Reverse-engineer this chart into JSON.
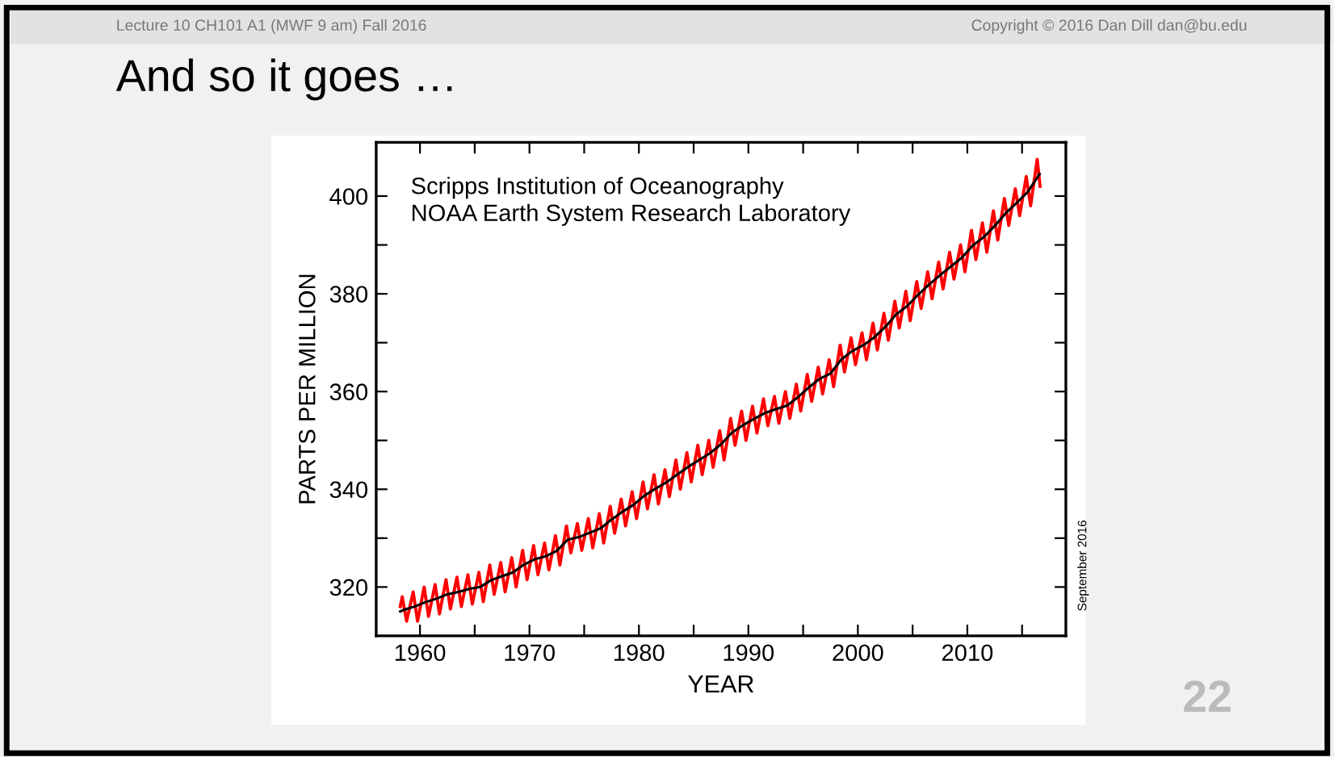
{
  "chart_data": {
    "type": "line",
    "title": "And so it goes …",
    "xlabel": "YEAR",
    "ylabel": "PARTS PER MILLION",
    "annotations": [
      "Lecture 10 CH101 A1 (MWF 9 am) Fall 2016",
      "Copyright © 2016 Dan Dill dan@bu.edu",
      "Scripps Institution of Oceanography\nNOAA Earth System Research Laboratory",
      "September 2016",
      "22"
    ],
    "xlim": [
      1956,
      2019
    ],
    "ylim": [
      310,
      411
    ],
    "xticks": [
      1960,
      {
        "value": 1965,
        "label": null
      },
      1970,
      {
        "value": 1975,
        "label": null
      },
      1980,
      {
        "value": 1985,
        "label": null
      },
      1990,
      {
        "value": 1995,
        "label": null
      },
      2000,
      {
        "value": 2005,
        "label": null
      },
      2010,
      {
        "value": 2015,
        "label": null
      }
    ],
    "yticks": [
      320,
      {
        "value": 330,
        "label": null
      },
      340,
      {
        "value": 350,
        "label": null
      },
      360,
      {
        "value": 370,
        "label": null
      },
      380,
      {
        "value": 390,
        "label": null
      },
      400
    ],
    "grid": false,
    "legend": false,
    "marker": "none",
    "line_style": "solid",
    "series": [
      {
        "color": "#ff0000",
        "x": [
          1958.2,
          1958.38,
          1958.78,
          1959.38,
          1959.78,
          1960.38,
          1960.78,
          1961.38,
          1961.78,
          1962.38,
          1962.78,
          1963.38,
          1963.78,
          1964.38,
          1964.78,
          1965.38,
          1965.78,
          1966.38,
          1966.78,
          1967.38,
          1967.78,
          1968.38,
          1968.78,
          1969.38,
          1969.78,
          1970.38,
          1970.78,
          1971.38,
          1971.78,
          1972.38,
          1972.78,
          1973.38,
          1973.78,
          1974.38,
          1974.78,
          1975.38,
          1975.78,
          1976.38,
          1976.78,
          1977.38,
          1977.78,
          1978.38,
          1978.78,
          1979.38,
          1979.78,
          1980.38,
          1980.78,
          1981.38,
          1981.78,
          1982.38,
          1982.78,
          1983.38,
          1983.78,
          1984.38,
          1984.78,
          1985.38,
          1985.78,
          1986.38,
          1986.78,
          1987.38,
          1987.78,
          1988.38,
          1988.78,
          1989.38,
          1989.78,
          1990.38,
          1990.78,
          1991.38,
          1991.78,
          1992.38,
          1992.78,
          1993.38,
          1993.78,
          1994.38,
          1994.78,
          1995.38,
          1995.78,
          1996.38,
          1996.78,
          1997.38,
          1997.78,
          1998.38,
          1998.78,
          1999.38,
          1999.78,
          2000.38,
          2000.78,
          2001.38,
          2001.78,
          2002.38,
          2002.78,
          2003.38,
          2003.78,
          2004.38,
          2004.78,
          2005.38,
          2005.78,
          2006.38,
          2006.78,
          2007.38,
          2007.78,
          2008.38,
          2008.78,
          2009.38,
          2009.78,
          2010.38,
          2010.78,
          2011.38,
          2011.78,
          2012.38,
          2012.78,
          2013.38,
          2013.78,
          2014.38,
          2014.78,
          2015.38,
          2015.78,
          2016.38,
          2016.65
        ],
        "values": [
          316,
          318,
          313,
          319,
          313,
          320,
          314,
          320.5,
          314.5,
          321.5,
          315.5,
          322,
          316,
          322.5,
          316.5,
          323,
          317,
          324.5,
          318.5,
          325,
          319,
          326,
          320,
          327.5,
          321.5,
          328.5,
          322.5,
          329,
          323.5,
          330.5,
          324.5,
          332.5,
          327,
          333,
          327.5,
          334,
          328,
          335,
          329,
          336.5,
          331,
          338,
          332.5,
          339.5,
          334,
          341.5,
          336,
          343,
          337,
          344,
          338.5,
          346,
          340,
          347.5,
          341.5,
          349,
          343,
          350,
          344.5,
          352,
          346,
          354.5,
          349,
          356,
          350,
          357,
          351.5,
          358.5,
          353,
          359,
          353.5,
          360,
          354.5,
          361.5,
          356,
          363.5,
          358,
          365,
          359.5,
          366.5,
          361,
          369.5,
          364,
          371,
          365.5,
          372,
          366.5,
          374,
          368.5,
          376,
          370.5,
          378.5,
          373,
          380.5,
          374.5,
          382.5,
          377,
          384.5,
          379,
          386.5,
          381,
          388.5,
          383,
          390,
          384.5,
          393,
          387,
          394.5,
          388.5,
          397,
          391,
          399.5,
          394,
          401.5,
          396,
          404,
          398,
          407.5,
          402
        ]
      },
      {
        "color": "#000000",
        "x": [
          1958.2,
          1958.5,
          1959.5,
          1960.5,
          1961.5,
          1962.5,
          1963.5,
          1964.5,
          1965.5,
          1966.5,
          1967.5,
          1968.5,
          1969.5,
          1970.5,
          1971.5,
          1972.5,
          1973.5,
          1974.5,
          1975.5,
          1976.5,
          1977.5,
          1978.5,
          1979.5,
          1980.5,
          1981.5,
          1982.5,
          1983.5,
          1984.5,
          1985.5,
          1986.5,
          1987.5,
          1988.5,
          1989.5,
          1990.5,
          1991.5,
          1992.5,
          1993.5,
          1994.5,
          1995.5,
          1996.5,
          1997.5,
          1998.5,
          1999.5,
          2000.5,
          2001.5,
          2002.5,
          2003.5,
          2004.5,
          2005.5,
          2006.5,
          2007.5,
          2008.5,
          2009.5,
          2010.5,
          2011.5,
          2012.5,
          2013.5,
          2014.5,
          2015.5,
          2016.6
        ],
        "values": [
          315,
          315.3,
          316,
          316.9,
          317.6,
          318.5,
          319,
          319.6,
          320,
          321.4,
          322.2,
          323,
          324.6,
          325.7,
          326.3,
          327.4,
          329.7,
          330.2,
          331.1,
          332,
          333.8,
          335.4,
          336.8,
          338.7,
          340.1,
          341.4,
          343,
          344.6,
          346,
          347.4,
          349.2,
          351.6,
          353.1,
          354.4,
          355.6,
          356.4,
          357.1,
          358.8,
          360.8,
          362.6,
          363.7,
          366.6,
          368.3,
          369.5,
          371.1,
          373.2,
          375.8,
          377.5,
          379.8,
          381.9,
          383.8,
          385.6,
          387.4,
          389.9,
          391.6,
          393.9,
          396.5,
          398.6,
          400.8,
          404.5
        ]
      }
    ]
  }
}
